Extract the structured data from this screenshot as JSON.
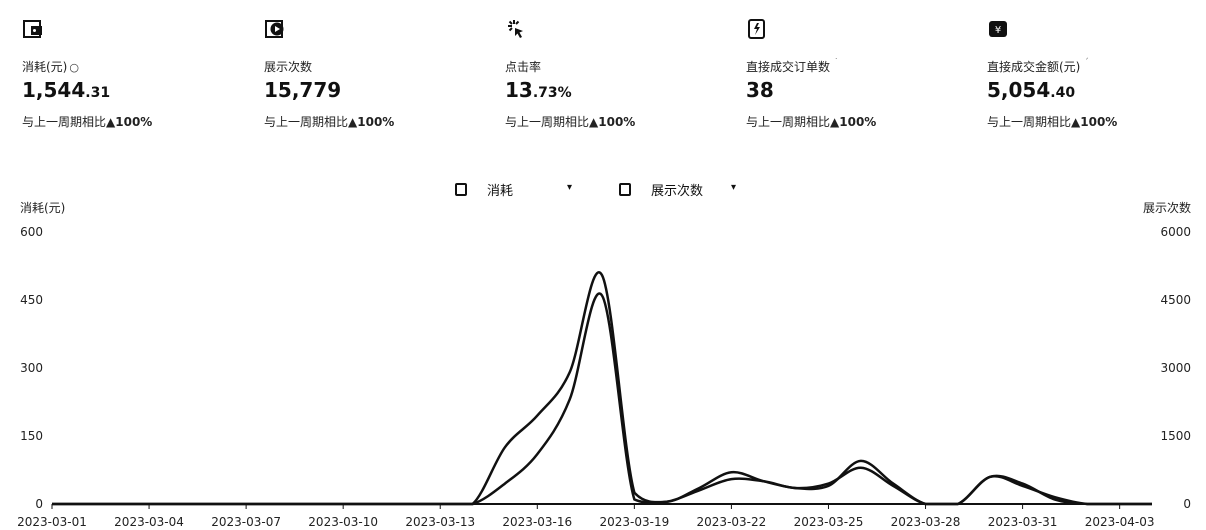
{
  "kpis": [
    {
      "label": "消耗(元)",
      "help": "○",
      "value_int": "1,544",
      "value_dec": ".31",
      "compare_prefix": "与上一周期相比",
      "compare_delta": "▲100%"
    },
    {
      "label": "展示次数",
      "value_int": "15,779",
      "value_dec": "",
      "compare_prefix": "与上一周期相比",
      "compare_delta": "▲100%"
    },
    {
      "label": "点击率",
      "value_int": "13",
      "value_dec": ".73%",
      "compare_prefix": "与上一周期相比",
      "compare_delta": "▲100%"
    },
    {
      "label": "直接成交订单数",
      "mark": "˙",
      "value_int": "38",
      "value_dec": "",
      "compare_prefix": "与上一周期相比",
      "compare_delta": "▲100%"
    },
    {
      "label": "直接成交金额(元)",
      "mark": "ˊ",
      "value_int": "5,054",
      "value_dec": ".40",
      "compare_prefix": "与上一周期相比",
      "compare_delta": "▲100%"
    }
  ],
  "legend": [
    {
      "name": "消耗",
      "dropdown": "▾"
    },
    {
      "name": "展示次数",
      "dropdown": "▾"
    }
  ],
  "chart_data": {
    "type": "line",
    "left_axis": {
      "label": "消耗(元)",
      "ticks": [
        "0",
        "150",
        "300",
        "450",
        "600"
      ],
      "range": [
        0,
        600
      ]
    },
    "right_axis": {
      "label": "展示次数",
      "ticks": [
        "0",
        "1500",
        "3000",
        "4500",
        "6000"
      ],
      "range": [
        0,
        6000
      ]
    },
    "x_tick_labels": [
      "2023-03-01",
      "2023-03-04",
      "2023-03-07",
      "2023-03-10",
      "2023-03-13",
      "2023-03-16",
      "2023-03-19",
      "2023-03-22",
      "2023-03-25",
      "2023-03-28",
      "2023-03-31",
      "2023-04-03"
    ],
    "x": [
      "2023-03-01",
      "2023-03-02",
      "2023-03-03",
      "2023-03-04",
      "2023-03-05",
      "2023-03-06",
      "2023-03-07",
      "2023-03-08",
      "2023-03-09",
      "2023-03-10",
      "2023-03-11",
      "2023-03-12",
      "2023-03-13",
      "2023-03-14",
      "2023-03-15",
      "2023-03-16",
      "2023-03-17",
      "2023-03-18",
      "2023-03-19",
      "2023-03-20",
      "2023-03-21",
      "2023-03-22",
      "2023-03-23",
      "2023-03-24",
      "2023-03-25",
      "2023-03-26",
      "2023-03-27",
      "2023-03-28",
      "2023-03-29",
      "2023-03-30",
      "2023-03-31",
      "2023-04-01",
      "2023-04-02",
      "2023-04-03",
      "2023-04-04"
    ],
    "series": [
      {
        "name": "消耗",
        "axis": "left",
        "values": [
          0,
          0,
          0,
          0,
          0,
          0,
          0,
          0,
          0,
          0,
          0,
          0,
          0,
          0,
          125,
          195,
          290,
          505,
          25,
          5,
          35,
          70,
          50,
          35,
          40,
          95,
          45,
          0,
          0,
          60,
          40,
          15,
          0,
          0,
          0
        ]
      },
      {
        "name": "展示次数",
        "axis": "right",
        "values": [
          0,
          0,
          0,
          0,
          0,
          0,
          0,
          0,
          0,
          0,
          0,
          0,
          0,
          0,
          450,
          1100,
          2300,
          4600,
          100,
          50,
          300,
          550,
          500,
          350,
          450,
          800,
          400,
          0,
          0,
          600,
          450,
          100,
          0,
          0,
          0
        ]
      }
    ],
    "line_color": "#111111",
    "grid": false,
    "legend_position": "top-center"
  }
}
